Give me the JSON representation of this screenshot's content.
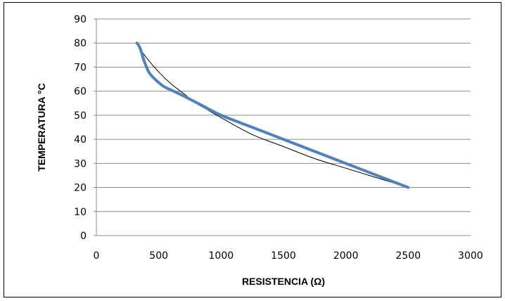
{
  "chart_data": {
    "type": "line",
    "title": "",
    "xlabel": "RESISTENCIA (Ω)",
    "ylabel": "TEMPERATURA °C",
    "xlim": [
      0,
      3000
    ],
    "ylim": [
      0,
      90
    ],
    "xticks": [
      0,
      500,
      1000,
      1500,
      2000,
      2500,
      3000
    ],
    "yticks": [
      0,
      10,
      20,
      30,
      40,
      50,
      60,
      70,
      80,
      90
    ],
    "grid": "horizontal",
    "legend": "none",
    "series": [
      {
        "style": "thick",
        "color": "#4F81BD",
        "x": [
          325,
          350,
          380,
          420,
          470,
          540,
          620,
          700,
          850,
          1000,
          1250,
          1500,
          1750,
          2000,
          2250,
          2500
        ],
        "y": [
          80,
          78,
          73,
          68,
          65,
          62,
          60,
          58,
          54,
          50,
          45,
          40,
          35,
          30,
          25,
          20
        ]
      },
      {
        "style": "thin",
        "color": "#000000",
        "x": [
          330,
          400,
          500,
          600,
          700,
          800,
          900,
          1000,
          1250,
          1500,
          1750,
          2000,
          2250,
          2500
        ],
        "y": [
          79,
          74,
          68,
          63,
          59,
          55,
          52,
          49,
          42,
          37,
          32,
          28,
          24,
          20
        ]
      }
    ]
  }
}
